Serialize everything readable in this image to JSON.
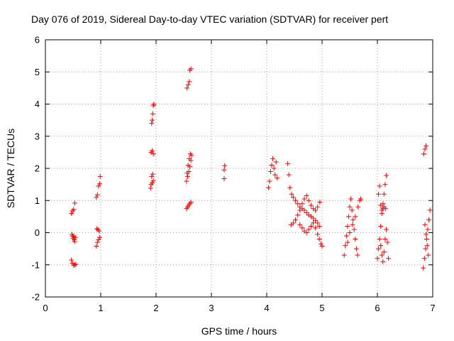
{
  "chart_data": {
    "type": "scatter",
    "title": "Day 076 of 2019, Sidereal Day-to-day VTEC variation (SDTVAR) for receiver pert",
    "xlabel": "GPS time / hours",
    "ylabel": "SDTVAR / TECUs",
    "xlim": [
      0,
      7
    ],
    "ylim": [
      -2,
      6
    ],
    "xticks": [
      0,
      1,
      2,
      3,
      4,
      5,
      6,
      7
    ],
    "yticks": [
      -2,
      -1,
      0,
      1,
      2,
      3,
      4,
      5,
      6
    ],
    "grid": true,
    "marker": "+",
    "marker_color": "#ff0000",
    "series": [
      {
        "name": "SDTVAR",
        "points": [
          [
            0.47,
            0.6
          ],
          [
            0.49,
            0.68
          ],
          [
            0.51,
            0.72
          ],
          [
            0.53,
            0.92
          ],
          [
            0.48,
            -0.05
          ],
          [
            0.49,
            -0.1
          ],
          [
            0.5,
            -0.18
          ],
          [
            0.51,
            -0.12
          ],
          [
            0.52,
            -0.22
          ],
          [
            0.53,
            -0.28
          ],
          [
            0.54,
            -0.15
          ],
          [
            0.47,
            -0.85
          ],
          [
            0.49,
            -0.95
          ],
          [
            0.51,
            -1.02
          ],
          [
            0.53,
            -1.0
          ],
          [
            0.55,
            -0.98
          ],
          [
            0.92,
            -0.42
          ],
          [
            0.94,
            -0.3
          ],
          [
            0.96,
            -0.22
          ],
          [
            0.98,
            -0.15
          ],
          [
            0.93,
            0.12
          ],
          [
            0.95,
            0.1
          ],
          [
            0.97,
            0.05
          ],
          [
            0.92,
            1.1
          ],
          [
            0.94,
            1.18
          ],
          [
            0.96,
            1.45
          ],
          [
            0.98,
            1.52
          ],
          [
            0.99,
            1.75
          ],
          [
            1.9,
            1.38
          ],
          [
            1.91,
            1.5
          ],
          [
            1.93,
            1.55
          ],
          [
            1.95,
            1.62
          ],
          [
            1.92,
            1.75
          ],
          [
            1.94,
            1.82
          ],
          [
            1.91,
            2.5
          ],
          [
            1.93,
            2.55
          ],
          [
            1.95,
            2.45
          ],
          [
            1.92,
            3.4
          ],
          [
            1.93,
            3.5
          ],
          [
            1.94,
            3.7
          ],
          [
            1.95,
            3.95
          ],
          [
            1.96,
            4.0
          ],
          [
            2.55,
            0.75
          ],
          [
            2.57,
            0.8
          ],
          [
            2.59,
            0.85
          ],
          [
            2.61,
            0.9
          ],
          [
            2.63,
            0.95
          ],
          [
            2.55,
            1.6
          ],
          [
            2.57,
            1.75
          ],
          [
            2.59,
            1.9
          ],
          [
            2.61,
            2.05
          ],
          [
            2.63,
            2.25
          ],
          [
            2.56,
            1.85
          ],
          [
            2.58,
            2.1
          ],
          [
            2.6,
            2.3
          ],
          [
            2.62,
            2.45
          ],
          [
            2.64,
            2.4
          ],
          [
            2.56,
            4.5
          ],
          [
            2.58,
            4.6
          ],
          [
            2.6,
            4.7
          ],
          [
            2.61,
            5.05
          ],
          [
            2.63,
            5.1
          ],
          [
            3.23,
            1.68
          ],
          [
            3.23,
            1.95
          ],
          [
            3.24,
            2.08
          ],
          [
            4.03,
            1.4
          ],
          [
            4.05,
            1.6
          ],
          [
            4.07,
            1.9
          ],
          [
            4.09,
            2.1
          ],
          [
            4.11,
            2.3
          ],
          [
            4.13,
            2.0
          ],
          [
            4.15,
            1.8
          ],
          [
            4.17,
            2.2
          ],
          [
            4.19,
            1.7
          ],
          [
            4.38,
            2.15
          ],
          [
            4.4,
            1.8
          ],
          [
            4.42,
            1.4
          ],
          [
            4.45,
            1.2
          ],
          [
            4.48,
            1.1
          ],
          [
            4.52,
            1.0
          ],
          [
            4.56,
            0.9
          ],
          [
            4.6,
            0.8
          ],
          [
            4.64,
            0.75
          ],
          [
            4.68,
            0.7
          ],
          [
            4.72,
            0.62
          ],
          [
            4.76,
            0.55
          ],
          [
            4.8,
            0.5
          ],
          [
            4.84,
            0.45
          ],
          [
            4.88,
            0.38
          ],
          [
            4.92,
            0.3
          ],
          [
            4.95,
            0.2
          ],
          [
            4.44,
            0.25
          ],
          [
            4.48,
            0.3
          ],
          [
            4.52,
            0.4
          ],
          [
            4.56,
            0.55
          ],
          [
            4.6,
            0.7
          ],
          [
            4.64,
            0.9
          ],
          [
            4.68,
            1.05
          ],
          [
            4.72,
            1.15
          ],
          [
            4.76,
            1.0
          ],
          [
            4.8,
            0.85
          ],
          [
            4.84,
            0.75
          ],
          [
            4.88,
            0.7
          ],
          [
            4.92,
            0.8
          ],
          [
            4.96,
            0.95
          ],
          [
            4.6,
            0.25
          ],
          [
            4.64,
            0.15
          ],
          [
            4.68,
            0.05
          ],
          [
            4.72,
            0.0
          ],
          [
            4.76,
            0.1
          ],
          [
            4.8,
            0.2
          ],
          [
            4.84,
            0.3
          ],
          [
            4.88,
            0.15
          ],
          [
            4.92,
            -0.05
          ],
          [
            4.95,
            -0.2
          ],
          [
            4.98,
            -0.35
          ],
          [
            5.0,
            -0.42
          ],
          [
            5.4,
            -0.7
          ],
          [
            5.42,
            -0.4
          ],
          [
            5.44,
            -0.1
          ],
          [
            5.46,
            0.2
          ],
          [
            5.48,
            0.5
          ],
          [
            5.5,
            0.8
          ],
          [
            5.52,
            1.05
          ],
          [
            5.54,
            0.7
          ],
          [
            5.56,
            0.4
          ],
          [
            5.58,
            0.1
          ],
          [
            5.6,
            -0.2
          ],
          [
            5.62,
            -0.5
          ],
          [
            5.64,
            -0.7
          ],
          [
            5.46,
            -0.3
          ],
          [
            5.5,
            0.0
          ],
          [
            5.55,
            0.25
          ],
          [
            5.6,
            0.5
          ],
          [
            5.65,
            0.8
          ],
          [
            5.68,
            1.0
          ],
          [
            5.7,
            1.05
          ],
          [
            6.0,
            -0.8
          ],
          [
            6.02,
            -0.5
          ],
          [
            6.04,
            -0.2
          ],
          [
            6.06,
            0.2
          ],
          [
            6.08,
            0.6
          ],
          [
            6.1,
            0.9
          ],
          [
            6.12,
            1.2
          ],
          [
            6.14,
            1.5
          ],
          [
            6.16,
            1.78
          ],
          [
            6.02,
            1.2
          ],
          [
            6.04,
            1.45
          ],
          [
            6.06,
            0.85
          ],
          [
            6.08,
            0.7
          ],
          [
            6.1,
            0.75
          ],
          [
            6.12,
            0.8
          ],
          [
            6.15,
            0.75
          ],
          [
            6.06,
            -0.4
          ],
          [
            6.08,
            -0.7
          ],
          [
            6.1,
            -0.9
          ],
          [
            6.12,
            -0.6
          ],
          [
            6.14,
            -0.2
          ],
          [
            6.16,
            0.1
          ],
          [
            6.18,
            -0.3
          ],
          [
            6.2,
            -0.8
          ],
          [
            6.84,
            2.45
          ],
          [
            6.86,
            2.6
          ],
          [
            6.88,
            2.7
          ],
          [
            6.83,
            -1.1
          ],
          [
            6.85,
            -0.8
          ],
          [
            6.87,
            -0.5
          ],
          [
            6.89,
            -0.2
          ],
          [
            6.91,
            0.1
          ],
          [
            6.93,
            0.4
          ],
          [
            6.95,
            0.7
          ],
          [
            6.86,
            0.25
          ],
          [
            6.88,
            -0.05
          ],
          [
            6.9,
            -0.4
          ],
          [
            6.92,
            -0.7
          ]
        ]
      }
    ]
  }
}
